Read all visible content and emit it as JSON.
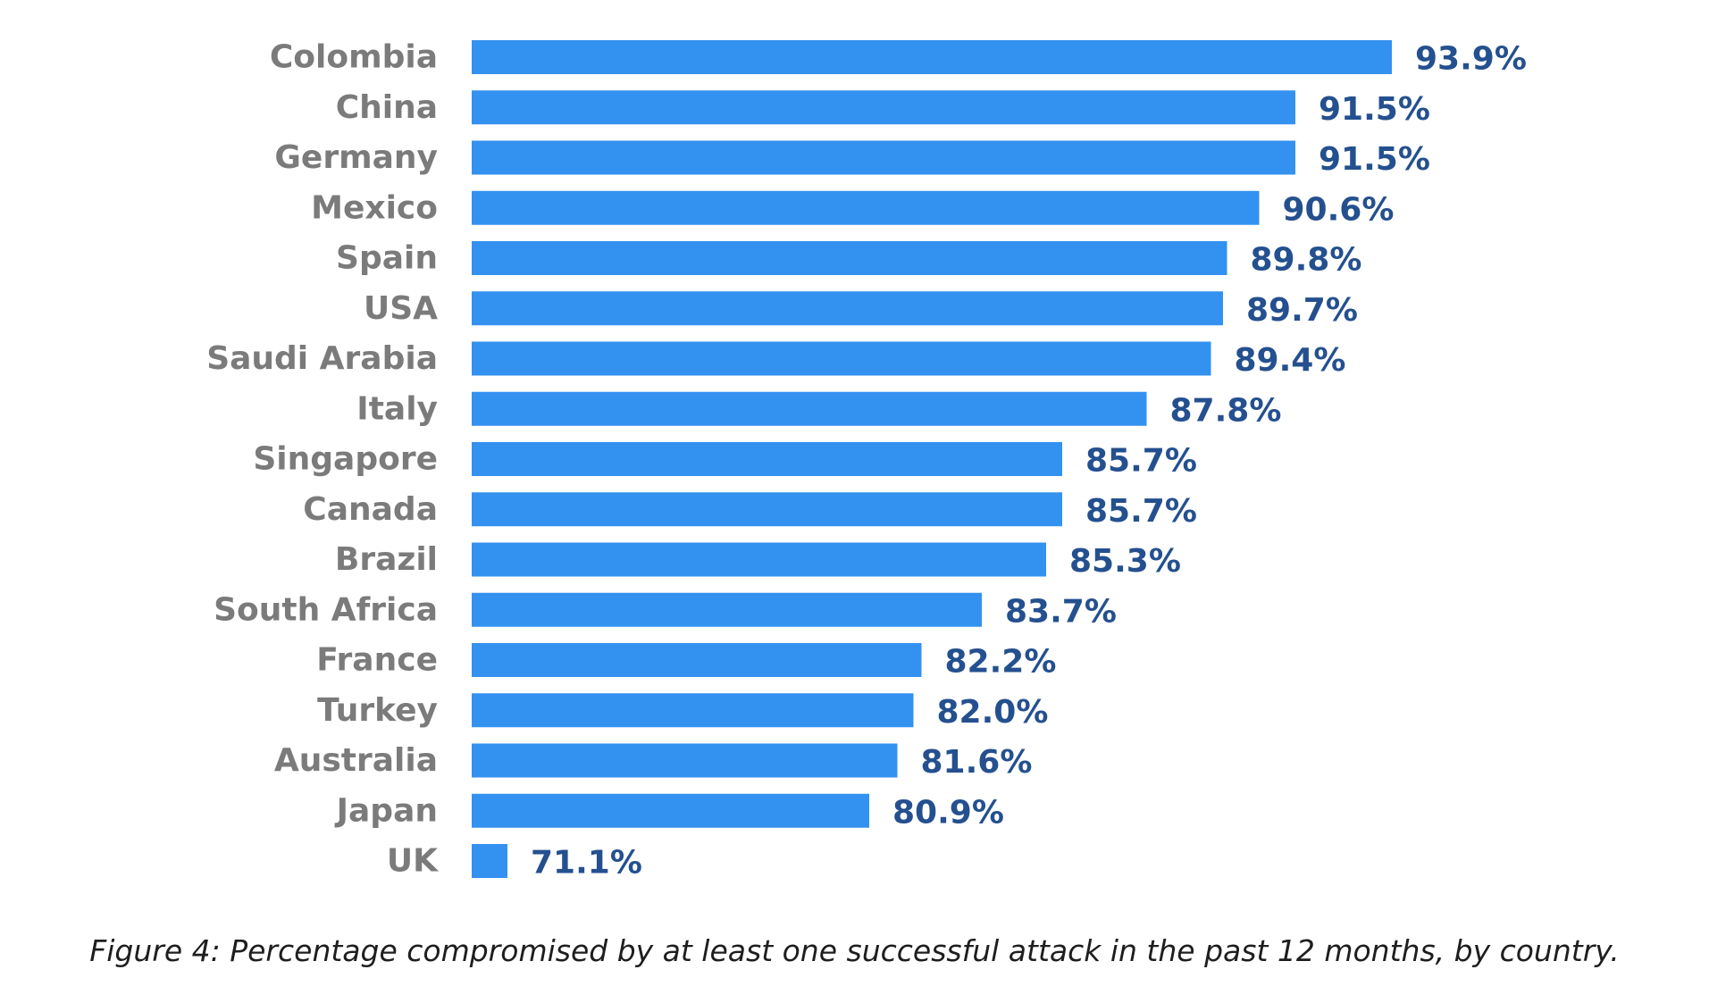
{
  "chart_data": {
    "type": "bar",
    "orientation": "horizontal",
    "categories": [
      "Colombia",
      "China",
      "Germany",
      "Mexico",
      "Spain",
      "USA",
      "Saudi Arabia",
      "Italy",
      "Singapore",
      "Canada",
      "Brazil",
      "South Africa",
      "France",
      "Turkey",
      "Australia",
      "Japan",
      "UK"
    ],
    "values": [
      93.9,
      91.5,
      91.5,
      90.6,
      89.8,
      89.7,
      89.4,
      87.8,
      85.7,
      85.7,
      85.3,
      83.7,
      82.2,
      82.0,
      81.6,
      80.9,
      71.1
    ],
    "value_labels": [
      "93.9%",
      "91.5%",
      "91.5%",
      "90.6%",
      "89.8%",
      "89.7%",
      "89.4%",
      "87.8%",
      "85.7%",
      "85.7%",
      "85.3%",
      "83.7%",
      "82.2%",
      "82.0%",
      "81.6%",
      "80.9%",
      "71.1%"
    ],
    "xlim": [
      60,
      95
    ],
    "grid": false,
    "legend": "none"
  },
  "caption": "Figure 4: Percentage compromised by at least one successful attack in the past 12 months, by country.",
  "colors": {
    "bar": "#3391f0",
    "value_label": "#24508f",
    "category_label": "#7b7b7b"
  }
}
